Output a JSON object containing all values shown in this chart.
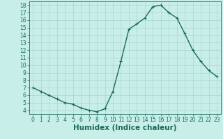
{
  "x": [
    0,
    1,
    2,
    3,
    4,
    5,
    6,
    7,
    8,
    9,
    10,
    11,
    12,
    13,
    14,
    15,
    16,
    17,
    18,
    19,
    20,
    21,
    22,
    23
  ],
  "y": [
    7.0,
    6.5,
    6.0,
    5.5,
    5.0,
    4.8,
    4.3,
    4.0,
    3.8,
    4.2,
    6.5,
    10.5,
    14.8,
    15.5,
    16.3,
    17.8,
    18.0,
    17.0,
    16.3,
    14.2,
    12.0,
    10.5,
    9.3,
    8.5
  ],
  "line_color": "#1a6b5a",
  "marker": "+",
  "markersize": 3,
  "linewidth": 1.0,
  "bg_color": "#c8eeea",
  "grid_color": "#aad4ce",
  "xlabel": "Humidex (Indice chaleur)",
  "xlim": [
    -0.5,
    23.5
  ],
  "ylim": [
    3.5,
    18.5
  ],
  "yticks": [
    4,
    5,
    6,
    7,
    8,
    9,
    10,
    11,
    12,
    13,
    14,
    15,
    16,
    17,
    18
  ],
  "xticks": [
    0,
    1,
    2,
    3,
    4,
    5,
    6,
    7,
    8,
    9,
    10,
    11,
    12,
    13,
    14,
    15,
    16,
    17,
    18,
    19,
    20,
    21,
    22,
    23
  ],
  "tick_fontsize": 5.5,
  "xlabel_fontsize": 7.5
}
